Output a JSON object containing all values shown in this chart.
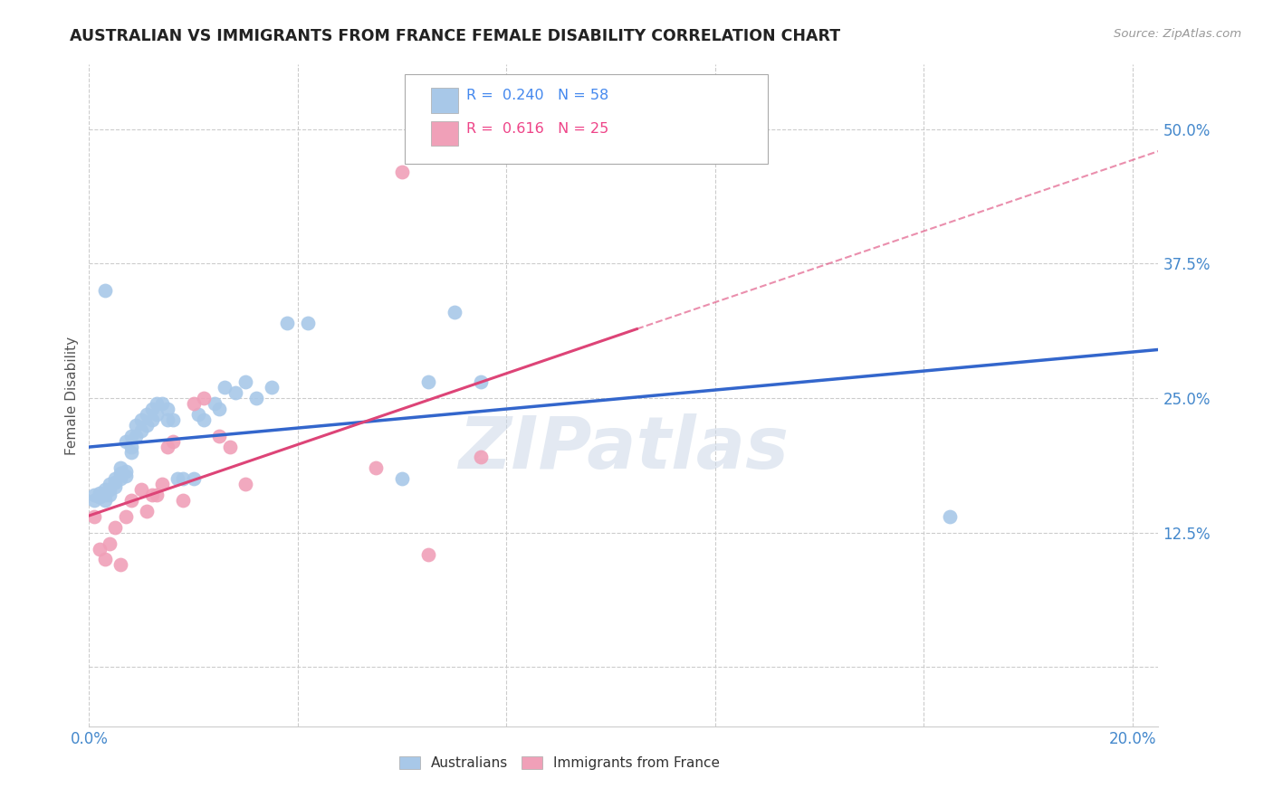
{
  "title": "AUSTRALIAN VS IMMIGRANTS FROM FRANCE FEMALE DISABILITY CORRELATION CHART",
  "source": "Source: ZipAtlas.com",
  "ylabel": "Female Disability",
  "xlim": [
    0.0,
    0.205
  ],
  "ylim": [
    -0.055,
    0.56
  ],
  "ytick_vals": [
    0.0,
    0.125,
    0.25,
    0.375,
    0.5
  ],
  "ytick_labels": [
    "",
    "12.5%",
    "25.0%",
    "37.5%",
    "50.0%"
  ],
  "xtick_vals": [
    0.0,
    0.04,
    0.08,
    0.12,
    0.16,
    0.2
  ],
  "xtick_labels": [
    "0.0%",
    "",
    "",
    "",
    "",
    "20.0%"
  ],
  "R_aus": 0.24,
  "N_aus": 58,
  "R_fra": 0.616,
  "N_fra": 25,
  "aus_color": "#a8c8e8",
  "fra_color": "#f0a0b8",
  "aus_line_color": "#3366cc",
  "fra_line_color": "#dd4477",
  "grid_color": "#cccccc",
  "watermark": "ZIPatlas",
  "aus_x": [
    0.001,
    0.001,
    0.002,
    0.002,
    0.002,
    0.003,
    0.003,
    0.003,
    0.003,
    0.004,
    0.004,
    0.004,
    0.005,
    0.005,
    0.005,
    0.006,
    0.006,
    0.006,
    0.007,
    0.007,
    0.007,
    0.008,
    0.008,
    0.008,
    0.009,
    0.009,
    0.01,
    0.01,
    0.011,
    0.011,
    0.012,
    0.012,
    0.013,
    0.013,
    0.014,
    0.015,
    0.015,
    0.016,
    0.017,
    0.018,
    0.02,
    0.021,
    0.022,
    0.024,
    0.025,
    0.026,
    0.028,
    0.03,
    0.032,
    0.035,
    0.038,
    0.042,
    0.06,
    0.065,
    0.07,
    0.075,
    0.165,
    0.003
  ],
  "aus_y": [
    0.16,
    0.155,
    0.158,
    0.162,
    0.158,
    0.155,
    0.16,
    0.162,
    0.165,
    0.16,
    0.165,
    0.17,
    0.168,
    0.172,
    0.175,
    0.175,
    0.18,
    0.185,
    0.178,
    0.182,
    0.21,
    0.2,
    0.205,
    0.215,
    0.215,
    0.225,
    0.22,
    0.23,
    0.225,
    0.235,
    0.24,
    0.23,
    0.235,
    0.245,
    0.245,
    0.23,
    0.24,
    0.23,
    0.175,
    0.175,
    0.175,
    0.235,
    0.23,
    0.245,
    0.24,
    0.26,
    0.255,
    0.265,
    0.25,
    0.26,
    0.32,
    0.32,
    0.175,
    0.265,
    0.33,
    0.265,
    0.14,
    0.35
  ],
  "fra_x": [
    0.001,
    0.002,
    0.003,
    0.004,
    0.005,
    0.006,
    0.007,
    0.008,
    0.01,
    0.011,
    0.012,
    0.013,
    0.014,
    0.015,
    0.016,
    0.018,
    0.02,
    0.022,
    0.025,
    0.027,
    0.03,
    0.055,
    0.065,
    0.075,
    0.06
  ],
  "fra_y": [
    0.14,
    0.11,
    0.1,
    0.115,
    0.13,
    0.095,
    0.14,
    0.155,
    0.165,
    0.145,
    0.16,
    0.16,
    0.17,
    0.205,
    0.21,
    0.155,
    0.245,
    0.25,
    0.215,
    0.205,
    0.17,
    0.185,
    0.105,
    0.195,
    0.46
  ]
}
